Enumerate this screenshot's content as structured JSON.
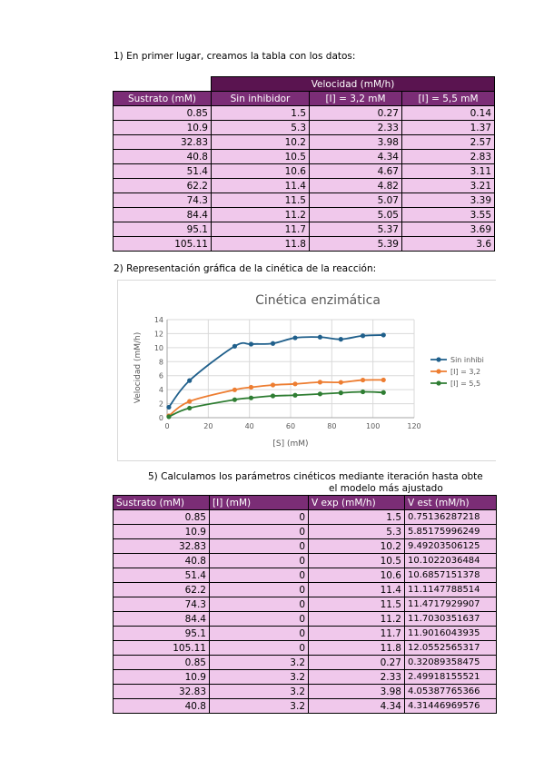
{
  "section1": {
    "heading": "1) En primer lugar, creamos la tabla con los datos:",
    "group_header": "Velocidad (mM/h)",
    "headers": [
      "Sustrato (mM)",
      "Sin inhibidor",
      "[I] = 3,2 mM",
      "[I] = 5,5 mM"
    ],
    "rows": [
      [
        "0.85",
        "1.5",
        "0.27",
        "0.14"
      ],
      [
        "10.9",
        "5.3",
        "2.33",
        "1.37"
      ],
      [
        "32.83",
        "10.2",
        "3.98",
        "2.57"
      ],
      [
        "40.8",
        "10.5",
        "4.34",
        "2.83"
      ],
      [
        "51.4",
        "10.6",
        "4.67",
        "3.11"
      ],
      [
        "62.2",
        "11.4",
        "4.82",
        "3.21"
      ],
      [
        "74.3",
        "11.5",
        "5.07",
        "3.39"
      ],
      [
        "84.4",
        "11.2",
        "5.05",
        "3.55"
      ],
      [
        "95.1",
        "11.7",
        "5.37",
        "3.69"
      ],
      [
        "105.11",
        "11.8",
        "5.39",
        "3.6"
      ]
    ]
  },
  "section2": {
    "heading": "2) Representación gráfica de la cinética de la reacción:"
  },
  "chart_data": {
    "type": "line",
    "title": "Cinética enzimática",
    "xlabel": "[S] (mM)",
    "ylabel": "Velocidad (mM/h)",
    "xlim": [
      0,
      120
    ],
    "ylim": [
      0,
      14
    ],
    "xticks": [
      "0",
      "20",
      "40",
      "60",
      "80",
      "100",
      "120"
    ],
    "yticks": [
      "0",
      "2",
      "4",
      "6",
      "8",
      "10",
      "12",
      "14"
    ],
    "grid": true,
    "legend": "right",
    "x": [
      0.85,
      10.9,
      32.83,
      40.8,
      51.4,
      62.2,
      74.3,
      84.4,
      95.1,
      105.11
    ],
    "series": [
      {
        "name": "Sin inhibi",
        "color": "#1f5f8b",
        "values": [
          1.5,
          5.3,
          10.2,
          10.5,
          10.6,
          11.4,
          11.5,
          11.2,
          11.7,
          11.8
        ]
      },
      {
        "name": "[I] = 3,2",
        "color": "#ed7d31",
        "values": [
          0.27,
          2.33,
          3.98,
          4.34,
          4.67,
          4.82,
          5.07,
          5.05,
          5.37,
          5.39
        ]
      },
      {
        "name": "[I] = 5,5",
        "color": "#2e7d32",
        "values": [
          0.14,
          1.37,
          2.57,
          2.83,
          3.11,
          3.21,
          3.39,
          3.55,
          3.69,
          3.6
        ]
      }
    ]
  },
  "section5": {
    "heading_line1": "5) Calculamos los parámetros cinéticos mediante iteración hasta obte",
    "heading_line2": "el modelo más ajustado",
    "headers": [
      "Sustrato (mM)",
      "[I] (mM)",
      "V exp (mM/h)",
      "V est (mM/h)"
    ],
    "rows": [
      [
        "0.85",
        "0",
        "1.5",
        "0.75136287218"
      ],
      [
        "10.9",
        "0",
        "5.3",
        "5.85175996249"
      ],
      [
        "32.83",
        "0",
        "10.2",
        "9.49203506125"
      ],
      [
        "40.8",
        "0",
        "10.5",
        "10.1022036484"
      ],
      [
        "51.4",
        "0",
        "10.6",
        "10.6857151378"
      ],
      [
        "62.2",
        "0",
        "11.4",
        "11.1147788514"
      ],
      [
        "74.3",
        "0",
        "11.5",
        "11.4717929907"
      ],
      [
        "84.4",
        "0",
        "11.2",
        "11.7030351637"
      ],
      [
        "95.1",
        "0",
        "11.7",
        "11.9016043935"
      ],
      [
        "105.11",
        "0",
        "11.8",
        "12.0552565317"
      ],
      [
        "0.85",
        "3.2",
        "0.27",
        "0.32089358475"
      ],
      [
        "10.9",
        "3.2",
        "2.33",
        "2.49918155521"
      ],
      [
        "32.83",
        "3.2",
        "3.98",
        "4.05387765366"
      ],
      [
        "40.8",
        "3.2",
        "4.34",
        "4.31446969576"
      ]
    ]
  }
}
